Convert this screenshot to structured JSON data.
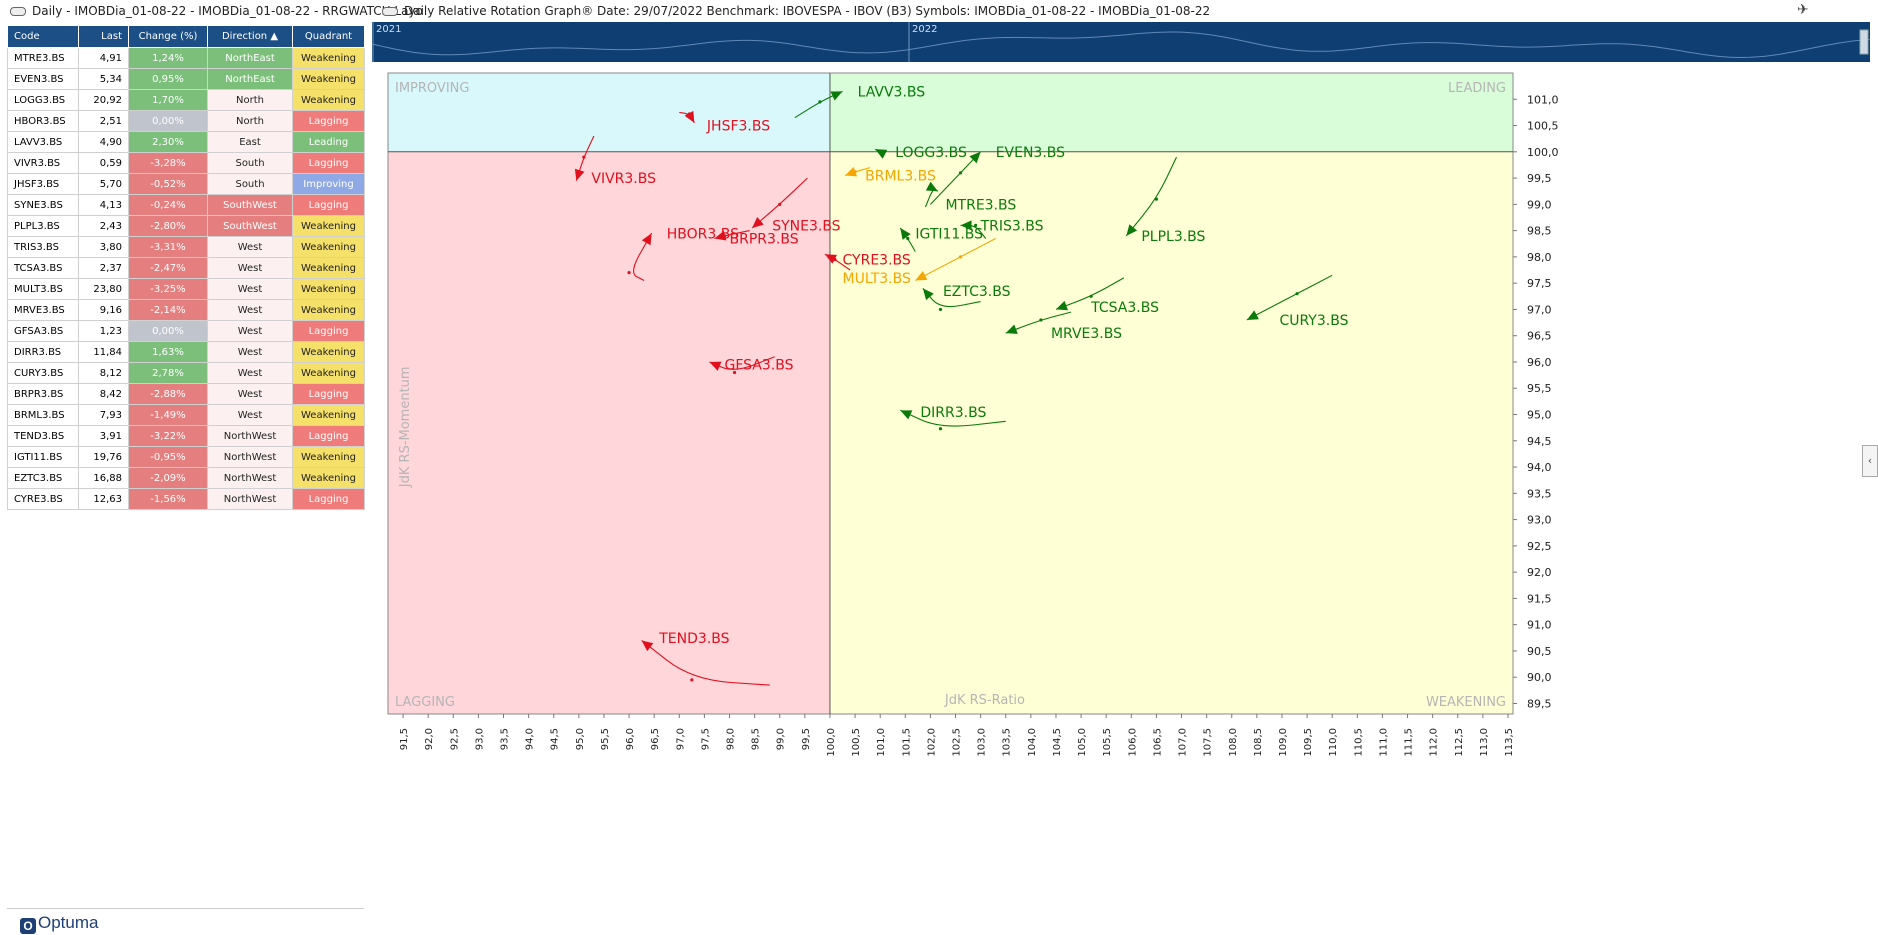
{
  "window": {
    "left_title": "Daily - IMOBDia_01-08-22 - IMOBDia_01-08-22 - RRGWATCH Layo",
    "right_title": "Daily Relative Rotation Graph®   Date: 29/07/2022  Benchmark: IBOVESPA - IBOV (B3)  Symbols: IMOBDia_01-08-22 - IMOBDia_01-08-22",
    "logo": "Optuma",
    "pin_icon": "pin-icon",
    "collapse_icon": "chevron-left-icon"
  },
  "table": {
    "headers": [
      "Code",
      "Last",
      "Change (%)",
      "Direction ▲",
      "Quadrant"
    ],
    "rows": [
      {
        "code": "MTRE3.BS",
        "last": "4,91",
        "change": "1,24%",
        "dir": "NorthEast",
        "quad": "Weakening"
      },
      {
        "code": "EVEN3.BS",
        "last": "5,34",
        "change": "0,95%",
        "dir": "NorthEast",
        "quad": "Weakening"
      },
      {
        "code": "LOGG3.BS",
        "last": "20,92",
        "change": "1,70%",
        "dir": "North",
        "quad": "Weakening"
      },
      {
        "code": "HBOR3.BS",
        "last": "2,51",
        "change": "0,00%",
        "dir": "North",
        "quad": "Lagging"
      },
      {
        "code": "LAVV3.BS",
        "last": "4,90",
        "change": "2,30%",
        "dir": "East",
        "quad": "Leading"
      },
      {
        "code": "VIVR3.BS",
        "last": "0,59",
        "change": "-3,28%",
        "dir": "South",
        "quad": "Lagging"
      },
      {
        "code": "JHSF3.BS",
        "last": "5,70",
        "change": "-0,52%",
        "dir": "South",
        "quad": "Improving"
      },
      {
        "code": "SYNE3.BS",
        "last": "4,13",
        "change": "-0,24%",
        "dir": "SouthWest",
        "quad": "Lagging"
      },
      {
        "code": "PLPL3.BS",
        "last": "2,43",
        "change": "-2,80%",
        "dir": "SouthWest",
        "quad": "Weakening"
      },
      {
        "code": "TRIS3.BS",
        "last": "3,80",
        "change": "-3,31%",
        "dir": "West",
        "quad": "Weakening"
      },
      {
        "code": "TCSA3.BS",
        "last": "2,37",
        "change": "-2,47%",
        "dir": "West",
        "quad": "Weakening"
      },
      {
        "code": "MULT3.BS",
        "last": "23,80",
        "change": "-3,25%",
        "dir": "West",
        "quad": "Weakening"
      },
      {
        "code": "MRVE3.BS",
        "last": "9,16",
        "change": "-2,14%",
        "dir": "West",
        "quad": "Weakening"
      },
      {
        "code": "GFSA3.BS",
        "last": "1,23",
        "change": "0,00%",
        "dir": "West",
        "quad": "Lagging"
      },
      {
        "code": "DIRR3.BS",
        "last": "11,84",
        "change": "1,63%",
        "dir": "West",
        "quad": "Weakening"
      },
      {
        "code": "CURY3.BS",
        "last": "8,12",
        "change": "2,78%",
        "dir": "West",
        "quad": "Weakening"
      },
      {
        "code": "BRPR3.BS",
        "last": "8,42",
        "change": "-2,88%",
        "dir": "West",
        "quad": "Lagging"
      },
      {
        "code": "BRML3.BS",
        "last": "7,93",
        "change": "-1,49%",
        "dir": "West",
        "quad": "Weakening"
      },
      {
        "code": "TEND3.BS",
        "last": "3,91",
        "change": "-3,22%",
        "dir": "NorthWest",
        "quad": "Lagging"
      },
      {
        "code": "IGTI11.BS",
        "last": "19,76",
        "change": "-0,95%",
        "dir": "NorthWest",
        "quad": "Weakening"
      },
      {
        "code": "EZTC3.BS",
        "last": "16,88",
        "change": "-2,09%",
        "dir": "NorthWest",
        "quad": "Weakening"
      },
      {
        "code": "CYRE3.BS",
        "last": "12,63",
        "change": "-1,56%",
        "dir": "NorthWest",
        "quad": "Lagging"
      }
    ]
  },
  "colors": {
    "header_bg": "#1c4f86",
    "change_pos": "#7bbf7b",
    "change_neg": "#e57e7e",
    "change_zero": "#c0c4cc",
    "dir_northeast_bg": "#7bbf7b",
    "dir_other_bg": "#fdf0f0",
    "quad_weakening": "#f5e06a",
    "quad_lagging": "#ef7b7b",
    "quad_leading": "#7bbf7b",
    "quad_improving": "#8fa9e6",
    "improving_bg": "#d8f8fc",
    "leading_bg": "#d9fcd9",
    "lagging_bg": "#ffd6d9",
    "weakening_bg": "#ffffd5",
    "green": "#0b7a0b",
    "red": "#e0101e",
    "orange": "#f5a500",
    "timeline_bg": "#0f3e73"
  },
  "chart_data": {
    "type": "scatter",
    "title": "Daily Relative Rotation Graph®",
    "xlabel": "JdK RS-Ratio",
    "ylabel": "JdK RS-Momentum",
    "xlim": [
      91.2,
      113.6
    ],
    "ylim": [
      89.3,
      101.5
    ],
    "center": [
      100.0,
      100.0
    ],
    "quadrant_labels": {
      "improving": "IMPROVING",
      "leading": "LEADING",
      "lagging": "LAGGING",
      "weakening": "WEAKENING"
    },
    "x_ticks": [
      "91,5",
      "92,0",
      "92,5",
      "93,0",
      "93,5",
      "94,0",
      "94,5",
      "95,0",
      "95,5",
      "96,0",
      "96,5",
      "97,0",
      "97,5",
      "98,0",
      "98,5",
      "99,0",
      "99,5",
      "100,0",
      "100,5",
      "101,0",
      "101,5",
      "102,0",
      "102,5",
      "103,0",
      "103,5",
      "104,0",
      "104,5",
      "105,0",
      "105,5",
      "106,0",
      "106,5",
      "107,0",
      "107,5",
      "108,0",
      "108,5",
      "109,0",
      "109,5",
      "110,0",
      "110,5",
      "111,0",
      "111,5",
      "112,0",
      "112,5",
      "113,0",
      "113,5"
    ],
    "y_ticks": [
      "89,5",
      "90,0",
      "90,5",
      "91,0",
      "91,5",
      "92,0",
      "92,5",
      "93,0",
      "93,5",
      "94,0",
      "94,5",
      "95,0",
      "95,5",
      "96,0",
      "96,5",
      "97,0",
      "97,5",
      "98,0",
      "98,5",
      "99,0",
      "99,5",
      "100,0",
      "100,5",
      "101,0"
    ],
    "timeline_years": [
      "2021",
      "2022"
    ],
    "series": [
      {
        "name": "LAVV3.BS",
        "color": "green",
        "trail": [
          [
            99.3,
            100.65
          ],
          [
            99.8,
            100.95
          ],
          [
            100.25,
            101.15
          ]
        ],
        "label_at": [
          100.55,
          101.15
        ]
      },
      {
        "name": "JHSF3.BS",
        "color": "red",
        "trail": [
          [
            97.0,
            100.75
          ],
          [
            97.2,
            100.72
          ],
          [
            97.3,
            100.55
          ]
        ],
        "label_at": [
          97.55,
          100.5
        ]
      },
      {
        "name": "VIVR3.BS",
        "color": "red",
        "trail": [
          [
            95.3,
            100.3
          ],
          [
            95.1,
            99.9
          ],
          [
            94.95,
            99.45
          ]
        ],
        "label_at": [
          95.25,
          99.5
        ]
      },
      {
        "name": "LOGG3.BS",
        "color": "green",
        "trail": [
          [
            101.1,
            99.95
          ],
          [
            101.0,
            100.0
          ],
          [
            100.9,
            100.05
          ]
        ],
        "label_at": [
          101.3,
          100.0
        ]
      },
      {
        "name": "EVEN3.BS",
        "color": "green",
        "trail": [
          [
            102.0,
            99.0
          ],
          [
            102.6,
            99.6
          ],
          [
            103.0,
            100.0
          ]
        ],
        "label_at": [
          103.3,
          100.0
        ]
      },
      {
        "name": "BRML3.BS",
        "color": "orange",
        "trail": [
          [
            100.8,
            99.7
          ],
          [
            100.5,
            99.62
          ],
          [
            100.3,
            99.55
          ]
        ],
        "label_at": [
          100.7,
          99.55
        ]
      },
      {
        "name": "MTRE3.BS",
        "color": "green",
        "trail": [
          [
            101.9,
            98.95
          ],
          [
            102.05,
            99.3
          ],
          [
            102.15,
            99.25
          ]
        ],
        "label_at": [
          102.3,
          99.0
        ]
      },
      {
        "name": "SYNE3.BS",
        "color": "red",
        "trail": [
          [
            99.55,
            99.5
          ],
          [
            99.0,
            99.0
          ],
          [
            98.45,
            98.55
          ]
        ],
        "label_at": [
          98.85,
          98.6
        ]
      },
      {
        "name": "IGTI11.BS",
        "color": "green",
        "trail": [
          [
            101.7,
            98.1
          ],
          [
            101.55,
            98.35
          ],
          [
            101.4,
            98.55
          ]
        ],
        "label_at": [
          101.7,
          98.45
        ]
      },
      {
        "name": "TRIS3.BS",
        "color": "green",
        "trail": [
          [
            103.1,
            98.35
          ],
          [
            102.9,
            98.6
          ],
          [
            102.6,
            98.6
          ]
        ],
        "label_at": [
          103.0,
          98.6
        ]
      },
      {
        "name": "PLPL3.BS",
        "color": "green",
        "trail": [
          [
            106.9,
            99.9
          ],
          [
            106.5,
            99.1
          ],
          [
            105.9,
            98.4
          ]
        ],
        "label_at": [
          106.2,
          98.4
        ]
      },
      {
        "name": "HBOR3.BS",
        "color": "red",
        "trail": [
          [
            96.3,
            97.55
          ],
          [
            96.0,
            97.7
          ],
          [
            96.45,
            98.45
          ]
        ],
        "label_at": [
          96.75,
          98.45
        ]
      },
      {
        "name": "BRPR3.BS",
        "color": "red",
        "trail": [
          [
            98.4,
            98.5
          ],
          [
            97.9,
            98.4
          ],
          [
            97.7,
            98.35
          ]
        ],
        "label_at": [
          98.0,
          98.35
        ]
      },
      {
        "name": "CYRE3.BS",
        "color": "red",
        "trail": [
          [
            100.4,
            97.75
          ],
          [
            100.1,
            97.95
          ],
          [
            99.9,
            98.05
          ]
        ],
        "label_at": [
          100.25,
          97.95
        ]
      },
      {
        "name": "MULT3.BS",
        "color": "orange",
        "trail": [
          [
            103.3,
            98.35
          ],
          [
            102.6,
            98.0
          ],
          [
            101.7,
            97.55
          ]
        ],
        "label_at": [
          100.25,
          97.6
        ]
      },
      {
        "name": "EZTC3.BS",
        "color": "green",
        "trail": [
          [
            103.0,
            97.15
          ],
          [
            102.2,
            97.0
          ],
          [
            101.85,
            97.4
          ]
        ],
        "label_at": [
          102.25,
          97.35
        ]
      },
      {
        "name": "TCSA3.BS",
        "color": "green",
        "trail": [
          [
            105.85,
            97.6
          ],
          [
            105.2,
            97.25
          ],
          [
            104.5,
            97.0
          ]
        ],
        "label_at": [
          105.2,
          97.05
        ]
      },
      {
        "name": "CURY3.BS",
        "color": "green",
        "trail": [
          [
            110.0,
            97.65
          ],
          [
            109.3,
            97.3
          ],
          [
            108.3,
            96.8
          ]
        ],
        "label_at": [
          108.95,
          96.8
        ]
      },
      {
        "name": "MRVE3.BS",
        "color": "green",
        "trail": [
          [
            104.8,
            96.95
          ],
          [
            104.2,
            96.8
          ],
          [
            103.5,
            96.55
          ]
        ],
        "label_at": [
          104.4,
          96.55
        ]
      },
      {
        "name": "GFSA3.BS",
        "color": "red",
        "trail": [
          [
            98.9,
            96.1
          ],
          [
            98.1,
            95.8
          ],
          [
            97.6,
            96.0
          ]
        ],
        "label_at": [
          97.9,
          95.95
        ]
      },
      {
        "name": "DIRR3.BS",
        "color": "green",
        "trail": [
          [
            103.5,
            94.87
          ],
          [
            102.2,
            94.73
          ],
          [
            101.4,
            95.08
          ]
        ],
        "label_at": [
          101.8,
          95.05
        ]
      },
      {
        "name": "TEND3.BS",
        "color": "red",
        "trail": [
          [
            98.8,
            89.85
          ],
          [
            97.25,
            89.95
          ],
          [
            96.25,
            90.7
          ]
        ],
        "label_at": [
          96.6,
          90.75
        ]
      }
    ]
  }
}
